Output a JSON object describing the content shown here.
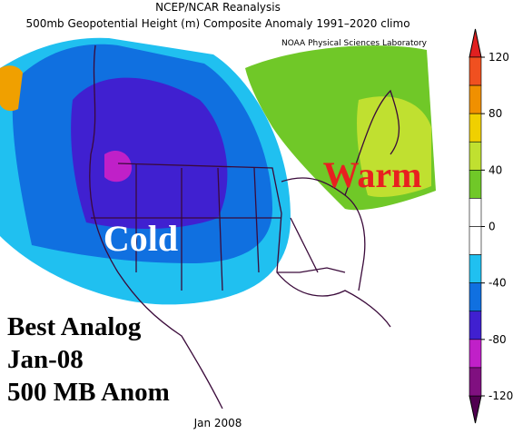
{
  "header": {
    "title": "NCEP/NCAR Reanalysis",
    "subtitle": "500mb Geopotential Height (m) Composite Anomaly 1991–2020 climo",
    "source": "NOAA Physical Sciences Laboratory"
  },
  "map": {
    "labels": [
      "Cold",
      "Warm"
    ]
  },
  "annotation": [
    "Best Analog",
    "Jan-08",
    "500 MB Anom"
  ],
  "footer": "Jan 2008",
  "colorbar": {
    "bins": [
      120,
      100,
      80,
      60,
      40,
      20,
      0,
      -20,
      -40,
      -60,
      -80,
      -100,
      -120
    ],
    "colors": [
      "#f05020",
      "#f09000",
      "#f0d000",
      "#c0e030",
      "#70c828",
      "#ffffff",
      "#ffffff",
      "#20c0f0",
      "#1070e0",
      "#4020d0",
      "#c020c8",
      "#801080"
    ],
    "over_color": "#e02020",
    "under_color": "#500050",
    "ticks": [
      120,
      80,
      40,
      0,
      -40,
      -80,
      -120
    ]
  }
}
